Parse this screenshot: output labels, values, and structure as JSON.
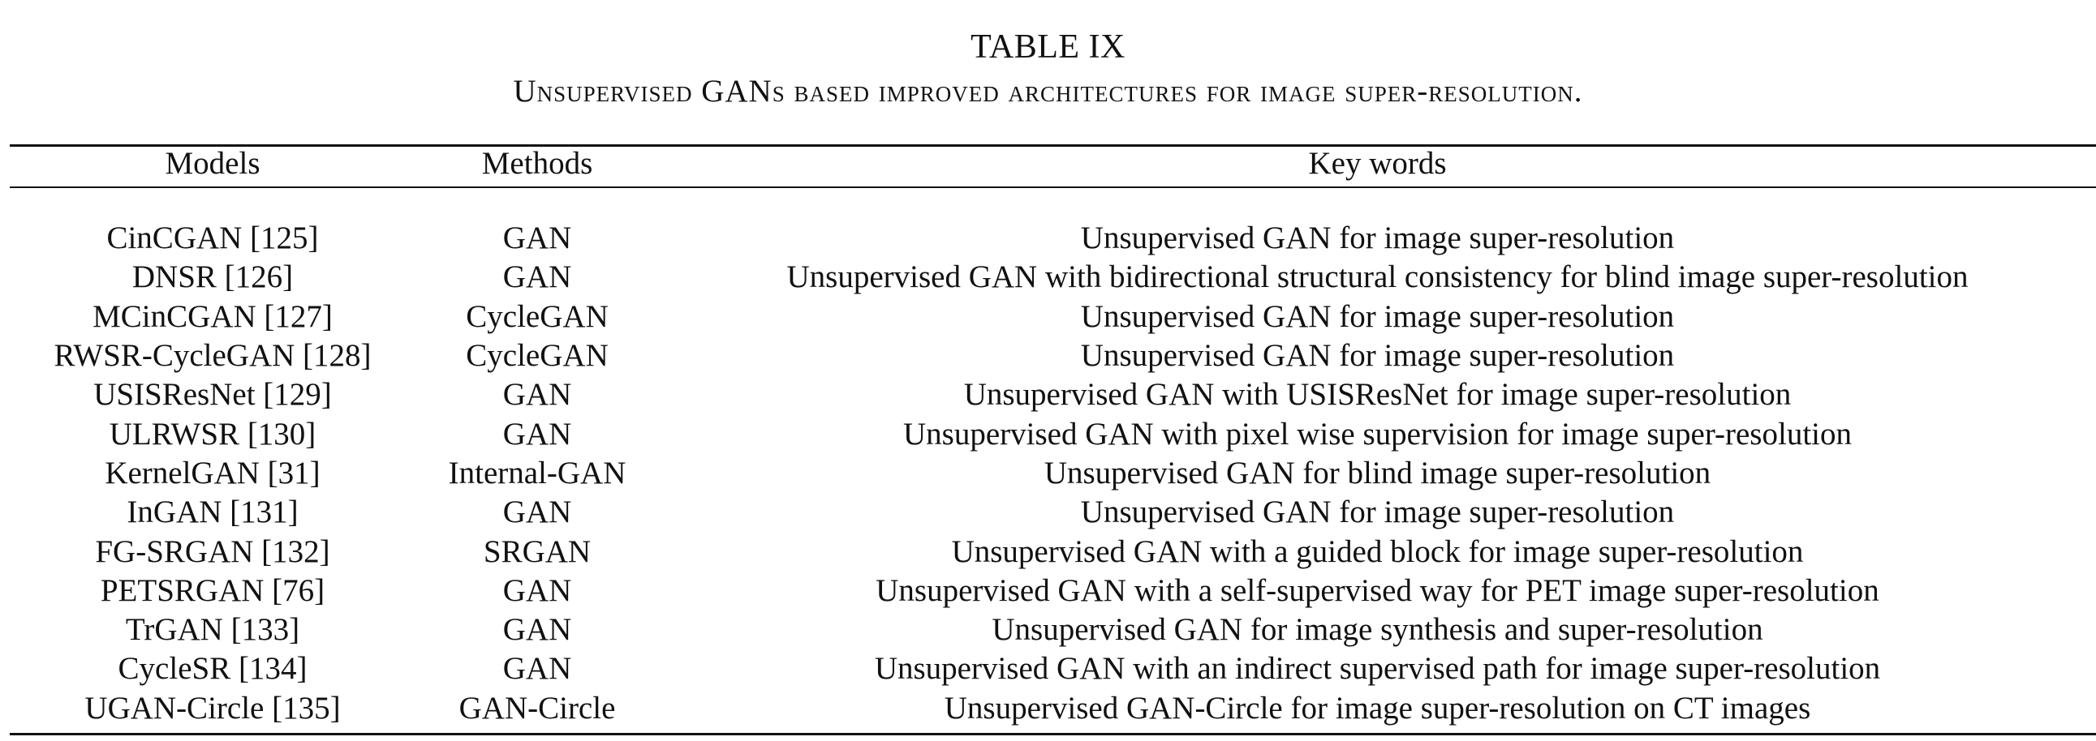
{
  "caption": {
    "label": "TABLE IX",
    "title": "Unsupervised GANs based improved architectures for image super-resolution."
  },
  "table": {
    "headers": [
      "Models",
      "Methods",
      "Key words"
    ],
    "rows": [
      [
        "CinCGAN [125]",
        "GAN",
        "Unsupervised GAN for image super-resolution"
      ],
      [
        "DNSR [126]",
        "GAN",
        "Unsupervised GAN with bidirectional structural consistency for blind image super-resolution"
      ],
      [
        "MCinCGAN [127]",
        "CycleGAN",
        "Unsupervised GAN for image super-resolution"
      ],
      [
        "RWSR-CycleGAN [128]",
        "CycleGAN",
        "Unsupervised GAN for image super-resolution"
      ],
      [
        "USISResNet [129]",
        "GAN",
        "Unsupervised GAN with USISResNet for image super-resolution"
      ],
      [
        "ULRWSR [130]",
        "GAN",
        "Unsupervised GAN with pixel wise supervision for image super-resolution"
      ],
      [
        "KernelGAN [31]",
        "Internal-GAN",
        "Unsupervised GAN for blind image super-resolution"
      ],
      [
        "InGAN [131]",
        "GAN",
        "Unsupervised GAN for image super-resolution"
      ],
      [
        "FG-SRGAN [132]",
        "SRGAN",
        "Unsupervised GAN with a guided block for image super-resolution"
      ],
      [
        "PETSRGAN [76]",
        "GAN",
        "Unsupervised GAN with a self-supervised way for PET image super-resolution"
      ],
      [
        "TrGAN [133]",
        "GAN",
        "Unsupervised GAN for image synthesis and super-resolution"
      ],
      [
        "CycleSR [134]",
        "GAN",
        "Unsupervised GAN with an indirect supervised path for image super-resolution"
      ],
      [
        "UGAN-Circle [135]",
        "GAN-Circle",
        "Unsupervised GAN-Circle for image super-resolution on CT images"
      ]
    ]
  }
}
